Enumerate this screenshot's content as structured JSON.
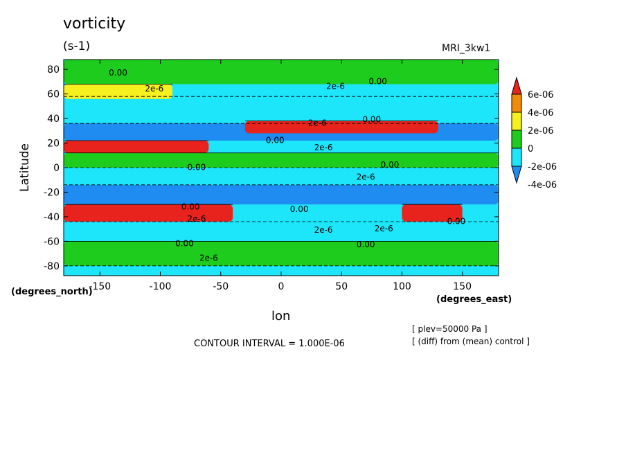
{
  "chart_data": {
    "type": "heatmap",
    "title": "vorticity",
    "subtitle": "(s-1)",
    "model_label": "MRI_3kw1",
    "xlabel": "lon",
    "xunits": "(degrees_east)",
    "ylabel": "Latitude",
    "yunits": "(degrees_north)",
    "xlim": [
      -180,
      180
    ],
    "ylim": [
      -88,
      88
    ],
    "x_ticks": [
      -150,
      -100,
      -50,
      0,
      50,
      100,
      150
    ],
    "x_tick_labels": [
      "-150",
      "-100",
      "-50",
      "0",
      "50",
      "100",
      "150"
    ],
    "y_ticks": [
      -80,
      -60,
      -40,
      -20,
      0,
      20,
      40,
      60,
      80
    ],
    "y_tick_labels": [
      "-80",
      "-60",
      "-40",
      "-20",
      "0",
      "20",
      "40",
      "60",
      "80"
    ],
    "colorbar": {
      "levels": [
        -4e-06,
        -2e-06,
        0,
        2e-06,
        4e-06,
        6e-06
      ],
      "labels": [
        "6e-06",
        "4e-06",
        "2e-06",
        "0",
        "-2e-06",
        "-4e-06"
      ],
      "colors": [
        "#e8231e",
        "#f08c0a",
        "#f5f01e",
        "#1ecc1e",
        "#1ee6fa",
        "#1e8cf0"
      ],
      "extended": "both"
    },
    "bands": [
      {
        "lat": [
          -88,
          -80
        ],
        "lon": [
          -180,
          180
        ],
        "class": "-2e-06 to 0"
      },
      {
        "lat": [
          -80,
          -60
        ],
        "lon": [
          -180,
          180
        ],
        "class": "0 to 2e-06"
      },
      {
        "lat": [
          -60,
          -44
        ],
        "lon": [
          -180,
          180
        ],
        "class": "-2e-06 to 0"
      },
      {
        "lat": [
          -44,
          -30
        ],
        "lon": [
          -180,
          -40
        ],
        "class": "above 6e-06"
      },
      {
        "lat": [
          -44,
          -30
        ],
        "lon": [
          100,
          150
        ],
        "class": "above 6e-06"
      },
      {
        "lat": [
          -30,
          -14
        ],
        "lon": [
          -180,
          180
        ],
        "class": "below -4e-06"
      },
      {
        "lat": [
          -14,
          0
        ],
        "lon": [
          -180,
          180
        ],
        "class": "-2e-06 to 0"
      },
      {
        "lat": [
          0,
          12
        ],
        "lon": [
          -180,
          180
        ],
        "class": "0 to 2e-06"
      },
      {
        "lat": [
          12,
          22
        ],
        "lon": [
          -180,
          -60
        ],
        "class": "above 6e-06"
      },
      {
        "lat": [
          22,
          36
        ],
        "lon": [
          -180,
          180
        ],
        "class": "below -4e-06"
      },
      {
        "lat": [
          28,
          38
        ],
        "lon": [
          -30,
          130
        ],
        "class": "above 6e-06"
      },
      {
        "lat": [
          40,
          58
        ],
        "lon": [
          -180,
          180
        ],
        "class": "-2e-06 to 0"
      },
      {
        "lat": [
          56,
          68
        ],
        "lon": [
          -180,
          -90
        ],
        "class": "2e-06 to 4e-06"
      },
      {
        "lat": [
          68,
          88
        ],
        "lon": [
          -180,
          180
        ],
        "class": "0 to 2e-06"
      }
    ],
    "contour_labels": [
      {
        "text": "0.00",
        "lon": -135,
        "lat": 75
      },
      {
        "text": "2e-6",
        "lon": -105,
        "lat": 62
      },
      {
        "text": "2e-6",
        "lon": 45,
        "lat": 64
      },
      {
        "text": "0.00",
        "lon": 80,
        "lat": 68
      },
      {
        "text": "2e-6",
        "lon": 30,
        "lat": 34
      },
      {
        "text": "0.00",
        "lon": -5,
        "lat": 20
      },
      {
        "text": "2e-6",
        "lon": 35,
        "lat": 14
      },
      {
        "text": "0.00",
        "lon": 75,
        "lat": 37
      },
      {
        "text": "0.00",
        "lon": -70,
        "lat": -2
      },
      {
        "text": "0.00",
        "lon": 90,
        "lat": 0
      },
      {
        "text": "2e-6",
        "lon": 70,
        "lat": -10
      },
      {
        "text": "0.00",
        "lon": -75,
        "lat": -34
      },
      {
        "text": "2e-6",
        "lon": -70,
        "lat": -44
      },
      {
        "text": "0.00",
        "lon": 15,
        "lat": -36
      },
      {
        "text": "2e-6",
        "lon": 35,
        "lat": -53
      },
      {
        "text": "2e-6",
        "lon": 85,
        "lat": -52
      },
      {
        "text": "0.00",
        "lon": 70,
        "lat": -65
      },
      {
        "text": "0.00",
        "lon": -80,
        "lat": -64
      },
      {
        "text": "2e-6",
        "lon": -60,
        "lat": -76
      },
      {
        "text": "0.00",
        "lon": 145,
        "lat": -46
      }
    ]
  },
  "footer": {
    "contour_interval": "CONTOUR INTERVAL = 1.000E-06",
    "plev": "[ plev=50000 Pa ]",
    "diff": "[ (diff) from (mean) control ]"
  }
}
